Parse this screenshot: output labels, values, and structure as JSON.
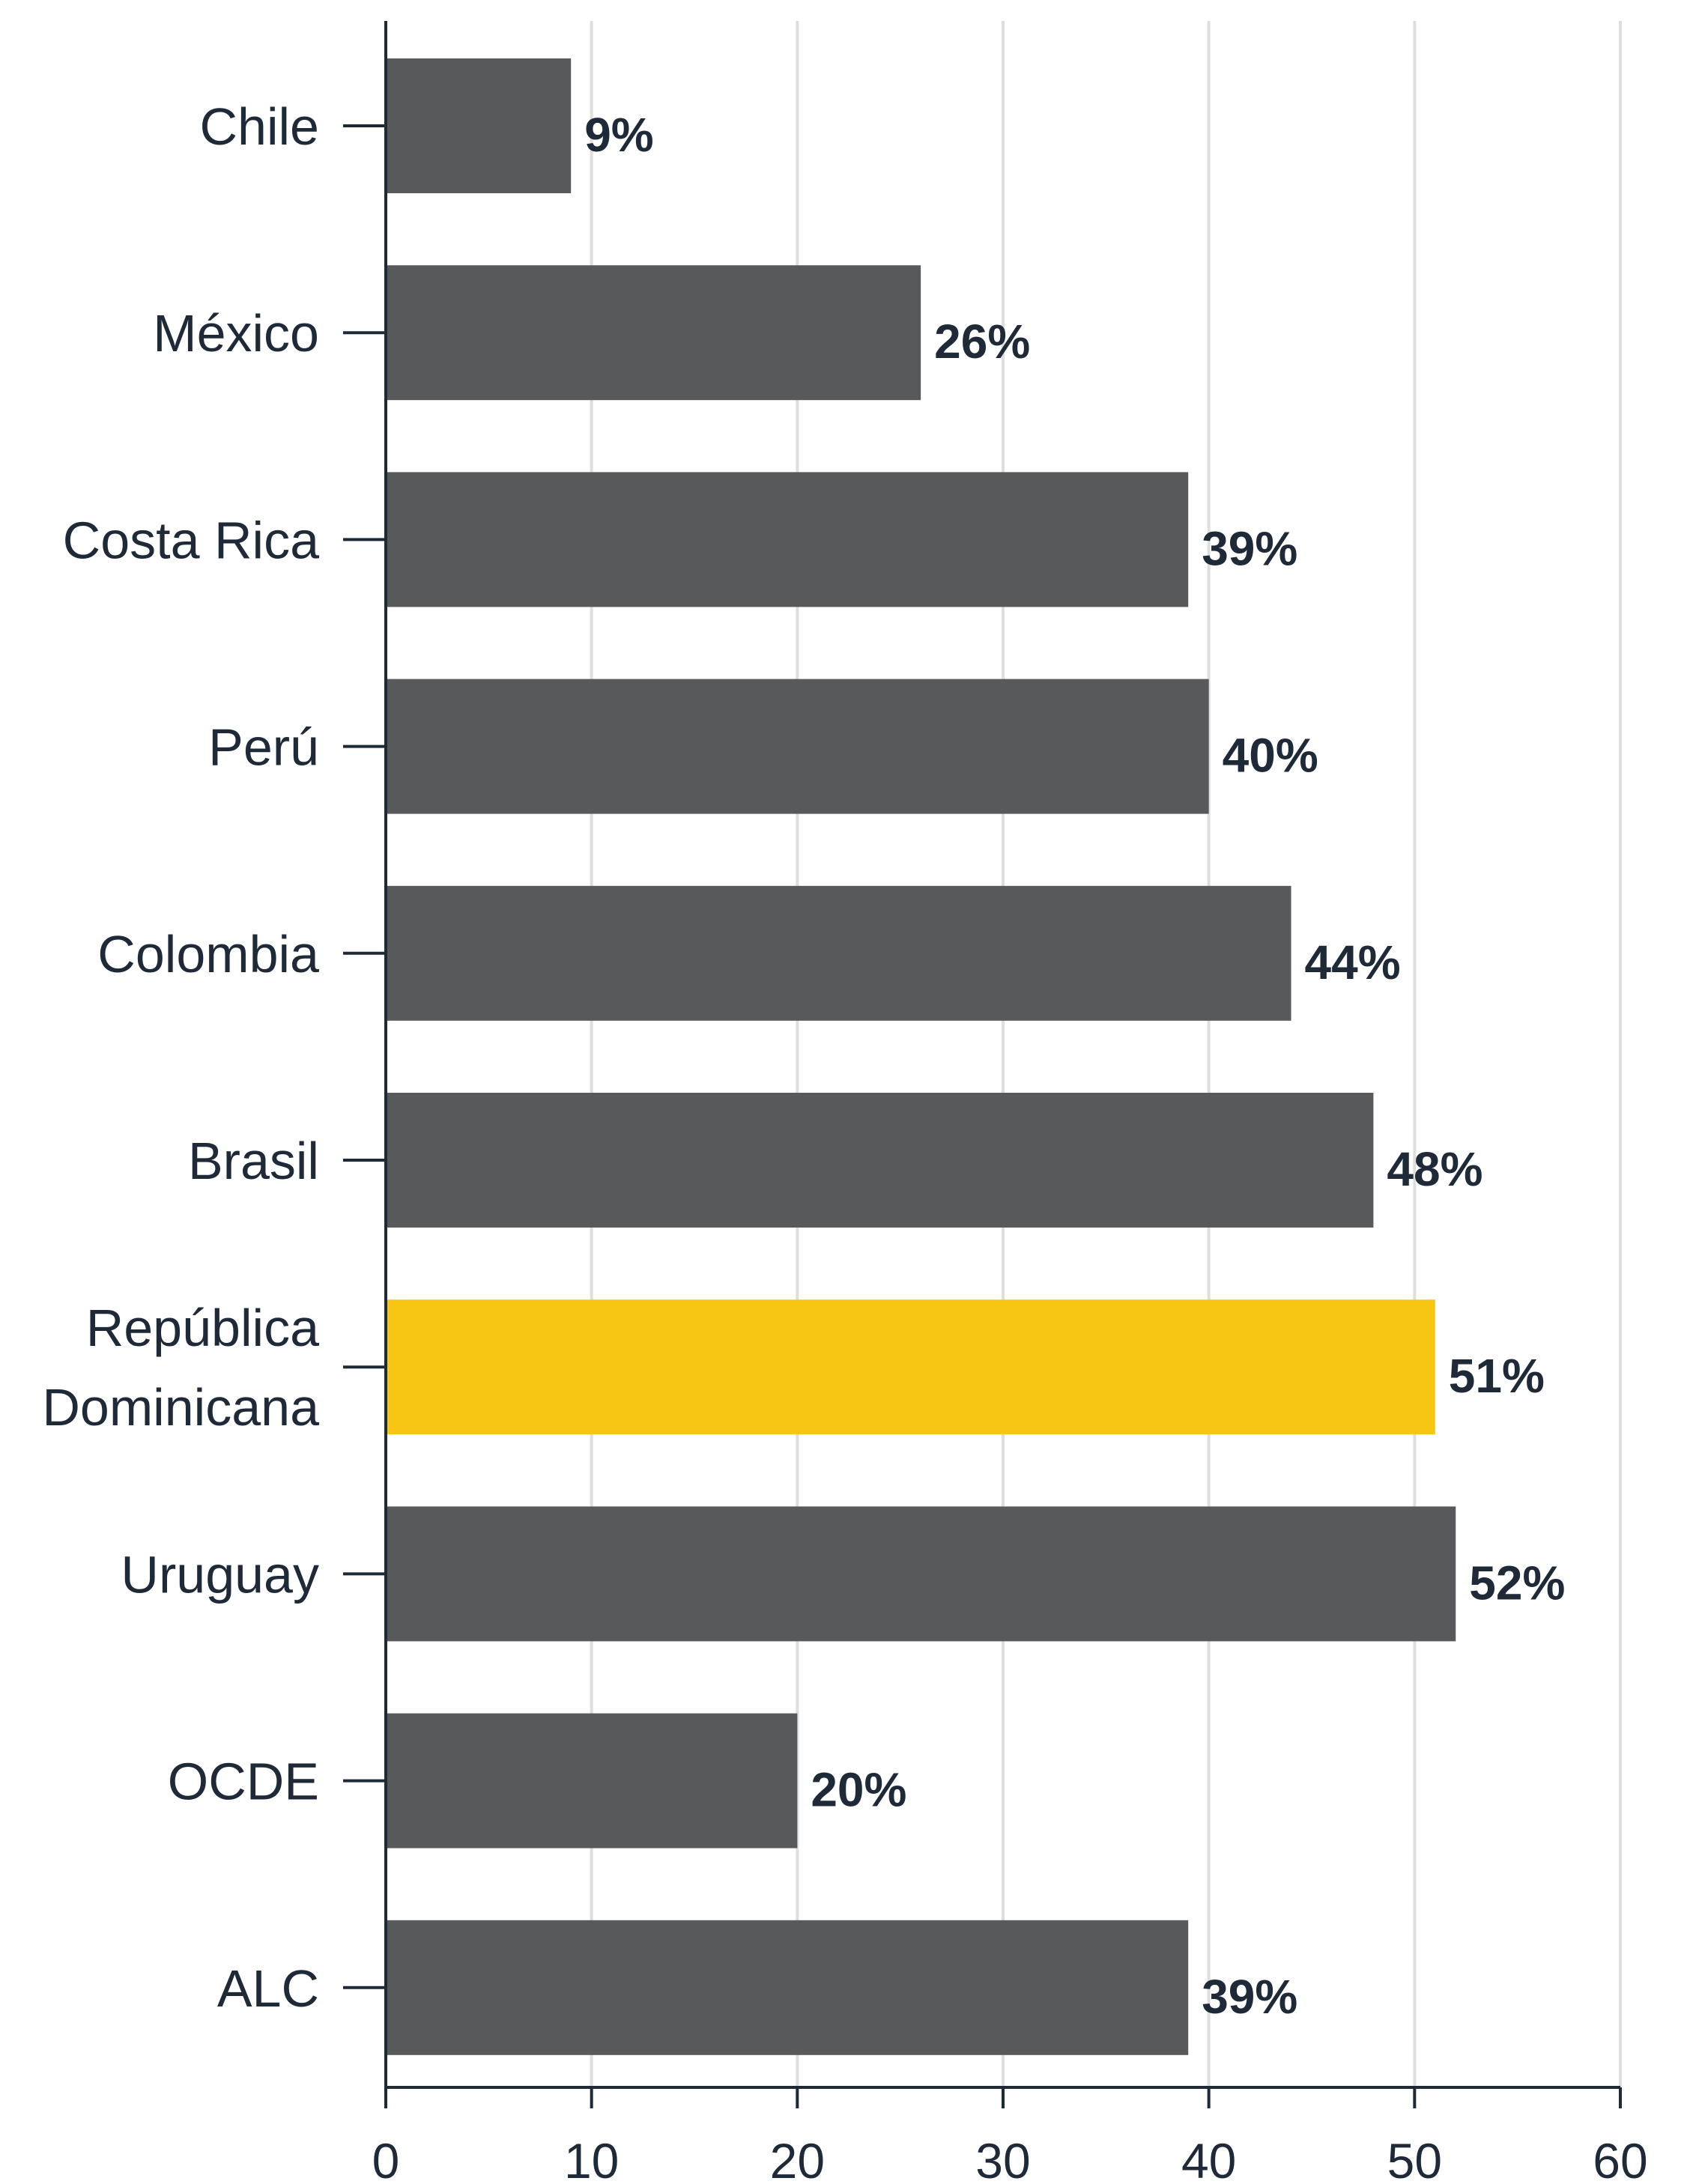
{
  "chart_data": {
    "type": "bar",
    "orientation": "horizontal",
    "categories": [
      "Chile",
      "México",
      "Costa Rica",
      "Perú",
      "Colombia",
      "Brasil",
      "República Dominicana",
      "Uruguay",
      "OCDE",
      "ALC"
    ],
    "category_lines": [
      [
        "Chile"
      ],
      [
        "México"
      ],
      [
        "Costa Rica"
      ],
      [
        "Perú"
      ],
      [
        "Colombia"
      ],
      [
        "Brasil"
      ],
      [
        "República",
        "Dominicana"
      ],
      [
        "Uruguay"
      ],
      [
        "OCDE"
      ],
      [
        "ALC"
      ]
    ],
    "values": [
      9,
      26,
      39,
      40,
      44,
      48,
      51,
      52,
      20,
      39
    ],
    "value_labels": [
      "9%",
      "26%",
      "39%",
      "40%",
      "44%",
      "48%",
      "51%",
      "52%",
      "20%",
      "39%"
    ],
    "highlight": "República Dominicana",
    "xlim": [
      0,
      60
    ],
    "xticks": [
      0,
      10,
      20,
      30,
      40,
      50,
      60
    ],
    "xtick_labels": [
      "0",
      "10",
      "20",
      "30",
      "40",
      "50",
      "60"
    ],
    "grid": "vertical",
    "legend": "none",
    "title": "",
    "xlabel": "",
    "ylabel": ""
  },
  "colors": {
    "bar": "#58595b",
    "highlight": "#f7c614",
    "axis": "#1f2a38",
    "grid": "#dedede",
    "text": "#1f2a38"
  }
}
